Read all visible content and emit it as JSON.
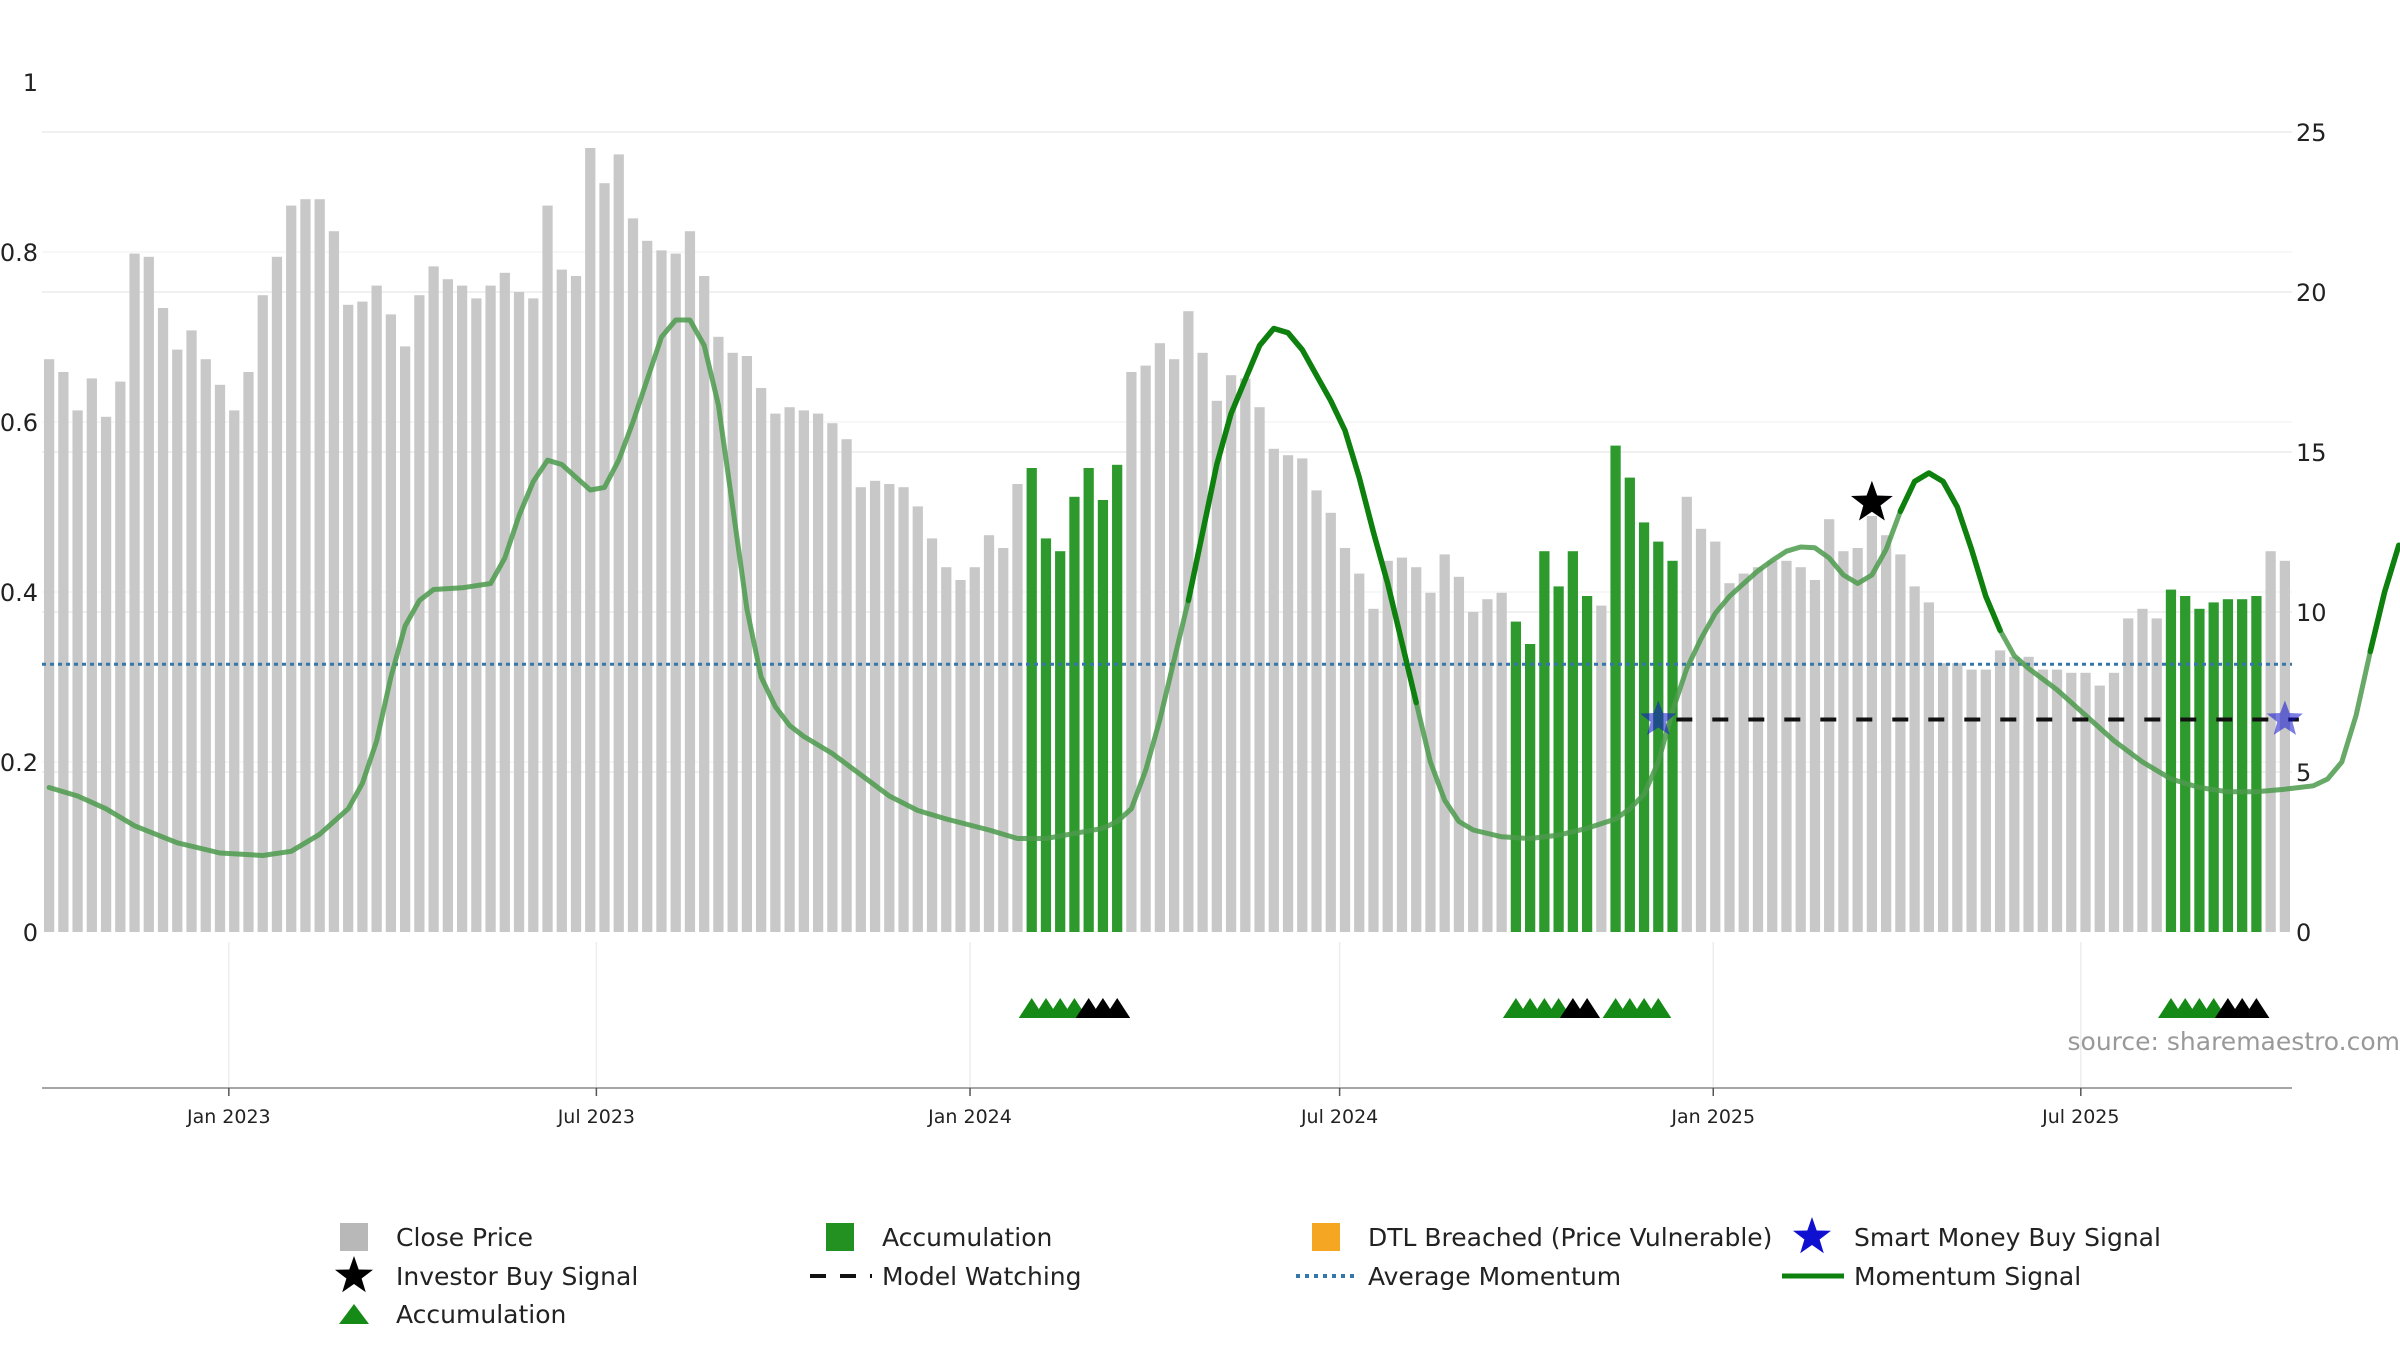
{
  "chart_data": {
    "type": "bar",
    "subtype": "combo-bar-line-signals",
    "price_axis": {
      "ylim": [
        0,
        25
      ],
      "ticks": [
        0,
        5,
        10,
        15,
        20,
        25
      ],
      "side": "right"
    },
    "momentum_axis": {
      "ylim": [
        0,
        1
      ],
      "ticks": [
        "0",
        "0.2",
        "0.4",
        "0.6",
        "0.8",
        "1"
      ],
      "side": "left"
    },
    "x_axis": {
      "start": "2022-10-01",
      "end": "2025-10-13",
      "ticks": [
        {
          "label": "Jan 2023",
          "date": "2023-01-01"
        },
        {
          "label": "Jul 2023",
          "date": "2023-07-01"
        },
        {
          "label": "Jan 2024",
          "date": "2024-01-01"
        },
        {
          "label": "Jul 2024",
          "date": "2024-07-01"
        },
        {
          "label": "Jan 2025",
          "date": "2025-01-01"
        },
        {
          "label": "Jul 2025",
          "date": "2025-07-01"
        }
      ]
    },
    "grid": true,
    "bar_colors": {
      "normal": "#c8c8c8",
      "accumulation": "#2e9a2e"
    },
    "close_prices": [
      17.9,
      17.5,
      16.3,
      17.3,
      16.1,
      17.2,
      21.2,
      21.1,
      19.5,
      18.2,
      18.8,
      17.9,
      17.1,
      16.3,
      17.5,
      19.9,
      21.1,
      22.7,
      22.9,
      22.9,
      21.9,
      19.6,
      19.7,
      20.2,
      19.3,
      18.3,
      19.9,
      20.8,
      20.4,
      20.2,
      19.8,
      20.2,
      20.6,
      20.0,
      19.8,
      22.7,
      20.7,
      20.5,
      24.5,
      23.4,
      24.3,
      22.3,
      21.6,
      21.3,
      21.2,
      21.9,
      20.5,
      18.6,
      18.1,
      18.0,
      17.0,
      16.2,
      16.4,
      16.3,
      16.2,
      15.9,
      15.4,
      13.9,
      14.1,
      14.0,
      13.9,
      13.3,
      12.3,
      11.4,
      11.0,
      11.4,
      12.4,
      12.0,
      14.0,
      14.5,
      12.3,
      11.9,
      13.6,
      14.5,
      13.5,
      14.6,
      17.5,
      17.7,
      18.4,
      17.9,
      19.4,
      18.1,
      16.6,
      17.4,
      17.3,
      16.4,
      15.1,
      14.9,
      14.8,
      13.8,
      13.1,
      12.0,
      11.2,
      10.1,
      11.6,
      11.7,
      11.4,
      10.6,
      11.8,
      11.1,
      10.0,
      10.4,
      10.6,
      9.7,
      9.0,
      11.9,
      10.8,
      11.9,
      10.5,
      10.2,
      15.2,
      14.2,
      12.8,
      12.2,
      11.6,
      13.6,
      12.6,
      12.2,
      10.9,
      11.2,
      11.4,
      11.6,
      11.6,
      11.4,
      11.0,
      12.9,
      11.9,
      12.0,
      13.0,
      12.4,
      11.8,
      10.8,
      10.3,
      8.4,
      8.4,
      8.2,
      8.2,
      8.8,
      8.6,
      8.6,
      8.2,
      8.2,
      8.1,
      8.1,
      7.7,
      8.1,
      9.8,
      10.1,
      9.8,
      10.7,
      10.5,
      10.1,
      10.3,
      10.4,
      10.4,
      10.5,
      11.9,
      11.6
    ],
    "accumulation_bar_indexes": [
      69,
      70,
      71,
      72,
      73,
      74,
      75,
      103,
      104,
      105,
      106,
      107,
      108,
      110,
      111,
      112,
      113,
      114,
      149,
      150,
      151,
      152,
      153,
      154,
      155
    ],
    "momentum_signal": [
      [
        0,
        0.17
      ],
      [
        2,
        0.16
      ],
      [
        4,
        0.145
      ],
      [
        6,
        0.125
      ],
      [
        9,
        0.105
      ],
      [
        12,
        0.093
      ],
      [
        15,
        0.09
      ],
      [
        17,
        0.095
      ],
      [
        19,
        0.115
      ],
      [
        21,
        0.145
      ],
      [
        22,
        0.175
      ],
      [
        23,
        0.225
      ],
      [
        24,
        0.3
      ],
      [
        25,
        0.36
      ],
      [
        26,
        0.39
      ],
      [
        27,
        0.403
      ],
      [
        29,
        0.405
      ],
      [
        31,
        0.41
      ],
      [
        32,
        0.44
      ],
      [
        33,
        0.49
      ],
      [
        34,
        0.53
      ],
      [
        35,
        0.555
      ],
      [
        36,
        0.55
      ],
      [
        37,
        0.535
      ],
      [
        38,
        0.52
      ],
      [
        39,
        0.523
      ],
      [
        40,
        0.555
      ],
      [
        41,
        0.6
      ],
      [
        42,
        0.65
      ],
      [
        43,
        0.7
      ],
      [
        44,
        0.72
      ],
      [
        45,
        0.72
      ],
      [
        46,
        0.69
      ],
      [
        47,
        0.62
      ],
      [
        48,
        0.5
      ],
      [
        49,
        0.38
      ],
      [
        50,
        0.3
      ],
      [
        51,
        0.265
      ],
      [
        52,
        0.243
      ],
      [
        53,
        0.23
      ],
      [
        55,
        0.21
      ],
      [
        57,
        0.185
      ],
      [
        59,
        0.16
      ],
      [
        61,
        0.143
      ],
      [
        63,
        0.133
      ],
      [
        66,
        0.12
      ],
      [
        68,
        0.11
      ],
      [
        70,
        0.11
      ],
      [
        72,
        0.116
      ],
      [
        74,
        0.122
      ],
      [
        75,
        0.13
      ],
      [
        76,
        0.145
      ],
      [
        77,
        0.19
      ],
      [
        78,
        0.25
      ],
      [
        79,
        0.32
      ],
      [
        80,
        0.39
      ],
      [
        81,
        0.47
      ],
      [
        82,
        0.55
      ],
      [
        83,
        0.61
      ],
      [
        84,
        0.65
      ],
      [
        85,
        0.69
      ],
      [
        86,
        0.71
      ],
      [
        87,
        0.705
      ],
      [
        88,
        0.685
      ],
      [
        89,
        0.655
      ],
      [
        90,
        0.625
      ],
      [
        91,
        0.59
      ],
      [
        92,
        0.535
      ],
      [
        93,
        0.47
      ],
      [
        94,
        0.41
      ],
      [
        95,
        0.34
      ],
      [
        96,
        0.27
      ],
      [
        97,
        0.2
      ],
      [
        98,
        0.155
      ],
      [
        99,
        0.13
      ],
      [
        100,
        0.12
      ],
      [
        102,
        0.112
      ],
      [
        104,
        0.11
      ],
      [
        106,
        0.114
      ],
      [
        108,
        0.122
      ],
      [
        110,
        0.133
      ],
      [
        111,
        0.145
      ],
      [
        112,
        0.162
      ],
      [
        113,
        0.2
      ],
      [
        114,
        0.26
      ],
      [
        115,
        0.31
      ],
      [
        116,
        0.345
      ],
      [
        117,
        0.375
      ],
      [
        118,
        0.395
      ],
      [
        119,
        0.41
      ],
      [
        120,
        0.425
      ],
      [
        121,
        0.437
      ],
      [
        122,
        0.448
      ],
      [
        123,
        0.453
      ],
      [
        124,
        0.452
      ],
      [
        125,
        0.44
      ],
      [
        126,
        0.42
      ],
      [
        127,
        0.41
      ],
      [
        128,
        0.42
      ],
      [
        129,
        0.45
      ],
      [
        130,
        0.495
      ],
      [
        131,
        0.53
      ],
      [
        132,
        0.54
      ],
      [
        133,
        0.53
      ],
      [
        134,
        0.5
      ],
      [
        135,
        0.45
      ],
      [
        136,
        0.395
      ],
      [
        137,
        0.355
      ],
      [
        138,
        0.325
      ],
      [
        139,
        0.31
      ],
      [
        141,
        0.285
      ],
      [
        143,
        0.255
      ],
      [
        145,
        0.225
      ],
      [
        147,
        0.2
      ],
      [
        149,
        0.18
      ],
      [
        151,
        0.17
      ],
      [
        153,
        0.165
      ],
      [
        155,
        0.165
      ],
      [
        157,
        0.168
      ],
      [
        159,
        0.172
      ],
      [
        160,
        0.18
      ],
      [
        161,
        0.2
      ],
      [
        162,
        0.255
      ],
      [
        163,
        0.33
      ],
      [
        164,
        0.4
      ],
      [
        165,
        0.455
      ]
    ],
    "momentum_emphasized_ranges": [
      [
        80,
        96
      ],
      [
        130,
        137
      ],
      [
        163,
        165
      ]
    ],
    "average_momentum": 0.315,
    "model_watching": {
      "y": 0.25,
      "from_index": 113,
      "to_index": 157
    },
    "smart_money_buy_signals": [
      {
        "index": 113,
        "y": 0.25
      },
      {
        "index": 157,
        "y": 0.25
      }
    ],
    "investor_buy_signals": [
      {
        "index": 128,
        "y": 0.505
      }
    ],
    "accumulation_markers": [
      {
        "index": 69,
        "kind": "accumulation"
      },
      {
        "index": 70,
        "kind": "accumulation"
      },
      {
        "index": 71,
        "kind": "accumulation"
      },
      {
        "index": 72,
        "kind": "accumulation"
      },
      {
        "index": 73,
        "kind": "investor"
      },
      {
        "index": 74,
        "kind": "investor"
      },
      {
        "index": 75,
        "kind": "investor"
      },
      {
        "index": 103,
        "kind": "accumulation"
      },
      {
        "index": 104,
        "kind": "accumulation"
      },
      {
        "index": 105,
        "kind": "accumulation"
      },
      {
        "index": 106,
        "kind": "accumulation"
      },
      {
        "index": 107,
        "kind": "investor"
      },
      {
        "index": 108,
        "kind": "investor"
      },
      {
        "index": 110,
        "kind": "accumulation"
      },
      {
        "index": 111,
        "kind": "accumulation"
      },
      {
        "index": 112,
        "kind": "accumulation"
      },
      {
        "index": 113,
        "kind": "accumulation"
      },
      {
        "index": 149,
        "kind": "accumulation"
      },
      {
        "index": 150,
        "kind": "accumulation"
      },
      {
        "index": 151,
        "kind": "accumulation"
      },
      {
        "index": 152,
        "kind": "accumulation"
      },
      {
        "index": 153,
        "kind": "investor"
      },
      {
        "index": 154,
        "kind": "investor"
      },
      {
        "index": 155,
        "kind": "investor"
      }
    ],
    "colors": {
      "momentum": "#0e800e",
      "momentum_faded": "#4c9a4c",
      "average_momentum": "#3577a8",
      "model_watching": "#111111",
      "smart_money": "#1010d0",
      "investor": "#000000",
      "marker_accumulation": "#168a16",
      "dtl": "#f5a623"
    },
    "source": "source: sharemaestro.com",
    "legend": {
      "placement": "bottom-center",
      "items": [
        {
          "label": "Close Price",
          "symbol": "square",
          "color": "#b8b8b8"
        },
        {
          "label": "Accumulation",
          "symbol": "square",
          "color": "#229122"
        },
        {
          "label": "DTL Breached (Price Vulnerable)",
          "symbol": "square",
          "color": "#f5a623"
        },
        {
          "label": "Smart Money Buy Signal",
          "symbol": "star",
          "color": "#1010d0"
        },
        {
          "label": "Investor Buy Signal",
          "symbol": "star",
          "color": "#000000"
        },
        {
          "label": "Model Watching",
          "symbol": "dash",
          "color": "#111111"
        },
        {
          "label": "Average Momentum",
          "symbol": "dot",
          "color": "#3577a8"
        },
        {
          "label": "Momentum Signal",
          "symbol": "line",
          "color": "#0e800e"
        },
        {
          "label": "Accumulation",
          "symbol": "triangle",
          "color": "#168a16"
        }
      ]
    }
  }
}
